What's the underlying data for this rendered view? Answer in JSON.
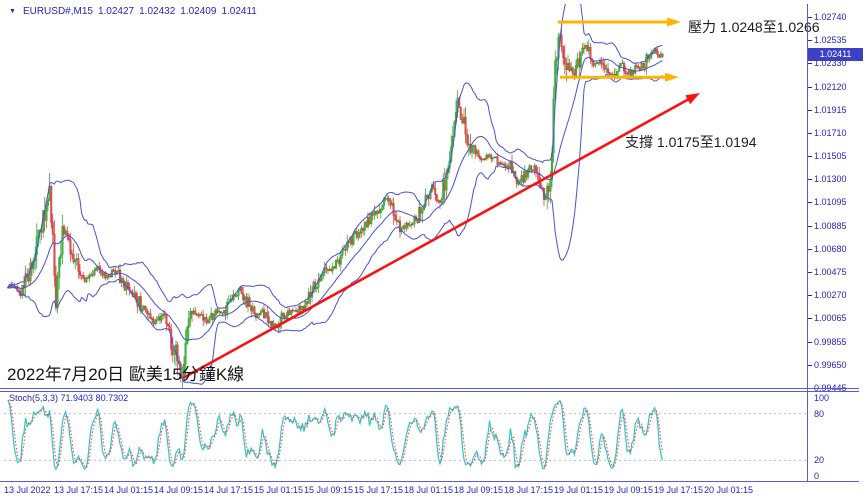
{
  "window": {
    "title": "MetaTrader chart window"
  },
  "header": {
    "symbol": "EURUSD#,M15",
    "ohlc": {
      "open": "1.02427",
      "high": "1.02432",
      "low": "1.02409",
      "close": "1.02411"
    }
  },
  "colors": {
    "frame": "#575ace",
    "axis_text": "#2424c4",
    "candle_up_fill": "#8fe88f",
    "candle_up_stroke": "#1e9e1e",
    "candle_down_fill": "#f5a0a0",
    "candle_down_stroke": "#cf3030",
    "bollinger": "#4553d6",
    "trend_red": "#fe1010",
    "arrow_yellow": "#ffb400",
    "stoch_k": "#2cc6c8",
    "stoch_d": "#ff4343",
    "level_dash": "#bcbcbc",
    "price_tag_bg": "#3a41c4"
  },
  "chart_data": {
    "type": "candlestick",
    "symbol": "EURUSD#",
    "timeframe": "M15",
    "overlays": [
      "Bollinger Bands"
    ],
    "current_price": "1.02411",
    "price_range": {
      "top": 1.02855,
      "bottom": 0.99447
    },
    "price_axis_ticks": [
      "1.02740",
      "1.02535",
      "1.02330",
      "1.02120",
      "1.01915",
      "1.01710",
      "1.01505",
      "1.01300",
      "1.01095",
      "1.00885",
      "1.00680",
      "1.00475",
      "1.00270",
      "1.00065",
      "0.99855",
      "0.99650",
      "0.99445"
    ],
    "time_axis_ticks": [
      "13 Jul 2022",
      "13 Jul 17:15",
      "14 Jul 01:15",
      "14 Jul 09:15",
      "14 Jul 17:15",
      "15 Jul 01:15",
      "15 Jul 09:15",
      "15 Jul 17:15",
      "18 Jul 01:15",
      "18 Jul 09:15",
      "18 Jul 17:15",
      "19 Jul 01:15",
      "19 Jul 09:15",
      "19 Jul 17:15",
      "20 Jul 01:15"
    ],
    "price_path": [
      [
        4,
        1.0034
      ],
      [
        16,
        1.003
      ],
      [
        28,
        1.0052
      ],
      [
        36,
        1.008
      ],
      [
        42,
        1.0105
      ],
      [
        46,
        1.0117
      ],
      [
        50,
        1.006
      ],
      [
        52,
        1.001
      ],
      [
        55,
        1.0068
      ],
      [
        61,
        1.0085
      ],
      [
        66,
        1.0072
      ],
      [
        74,
        1.0052
      ],
      [
        81,
        1.004
      ],
      [
        91,
        1.0052
      ],
      [
        101,
        1.0044
      ],
      [
        111,
        1.0049
      ],
      [
        121,
        1.0036
      ],
      [
        131,
        1.0026
      ],
      [
        141,
        1.0012
      ],
      [
        151,
        1.0002
      ],
      [
        159,
        1.0009
      ],
      [
        166,
        0.9992
      ],
      [
        173,
        0.9972
      ],
      [
        177,
        0.9952
      ],
      [
        182,
        0.9986
      ],
      [
        188,
        1.0009
      ],
      [
        196,
        1.0011
      ],
      [
        204,
        1.0001
      ],
      [
        211,
        1.0013
      ],
      [
        218,
        1.0009
      ],
      [
        226,
        1.0019
      ],
      [
        236,
        1.0033
      ],
      [
        244,
        1.0021
      ],
      [
        251,
        1.0009
      ],
      [
        258,
        1.0013
      ],
      [
        266,
        1.0003
      ],
      [
        273,
        0.9999
      ],
      [
        281,
        1.0011
      ],
      [
        291,
        1.0013
      ],
      [
        301,
        1.0019
      ],
      [
        311,
        1.0036
      ],
      [
        321,
        1.0049
      ],
      [
        331,
        1.0053
      ],
      [
        341,
        1.0066
      ],
      [
        351,
        1.0081
      ],
      [
        361,
        1.0091
      ],
      [
        371,
        1.0099
      ],
      [
        381,
        1.0113
      ],
      [
        388,
        1.0106
      ],
      [
        396,
        1.0086
      ],
      [
        404,
        1.0091
      ],
      [
        414,
        1.0096
      ],
      [
        421,
        1.0111
      ],
      [
        428,
        1.0123
      ],
      [
        436,
        1.0106
      ],
      [
        441,
        1.0131
      ],
      [
        448,
        1.0166
      ],
      [
        454,
        1.0199
      ],
      [
        461,
        1.0176
      ],
      [
        468,
        1.0156
      ],
      [
        476,
        1.0149
      ],
      [
        486,
        1.0151
      ],
      [
        496,
        1.0144
      ],
      [
        506,
        1.0141
      ],
      [
        514,
        1.0126
      ],
      [
        521,
        1.0133
      ],
      [
        528,
        1.0141
      ],
      [
        536,
        1.0131
      ],
      [
        542,
        1.0111
      ],
      [
        546,
        1.0121
      ],
      [
        549,
        1.0181
      ],
      [
        552,
        1.0241
      ],
      [
        556,
        1.0256
      ],
      [
        561,
        1.0236
      ],
      [
        566,
        1.0226
      ],
      [
        571,
        1.0223
      ],
      [
        576,
        1.0236
      ],
      [
        581,
        1.0249
      ],
      [
        586,
        1.0243
      ],
      [
        591,
        1.0231
      ],
      [
        596,
        1.0236
      ],
      [
        601,
        1.0229
      ],
      [
        606,
        1.0221
      ],
      [
        611,
        1.0226
      ],
      [
        616,
        1.0233
      ],
      [
        621,
        1.0229
      ],
      [
        626,
        1.0223
      ],
      [
        631,
        1.0229
      ],
      [
        636,
        1.0227
      ],
      [
        641,
        1.0233
      ],
      [
        646,
        1.0241
      ],
      [
        651,
        1.0245
      ],
      [
        654,
        1.0241
      ],
      [
        658,
        1.0239
      ],
      [
        661,
        1.0241
      ]
    ],
    "annotations": {
      "resistance": {
        "label": "壓力 1.0248至1.0266",
        "upper_arrow_price": 1.02695,
        "lower_arrow_price": 1.02205
      },
      "support": {
        "label": "支撐 1.0175至1.0194"
      },
      "caption": "2022年7月20日 歐美15分鐘K線"
    },
    "indicator": {
      "name_values": "Stoch(5,3,3) 71.9403 80.7302",
      "k_value": 71.9403,
      "d_value": 80.7302,
      "scale_labels": [
        "100",
        "80",
        "20",
        "0"
      ],
      "dashed_levels": [
        80,
        20
      ]
    }
  }
}
